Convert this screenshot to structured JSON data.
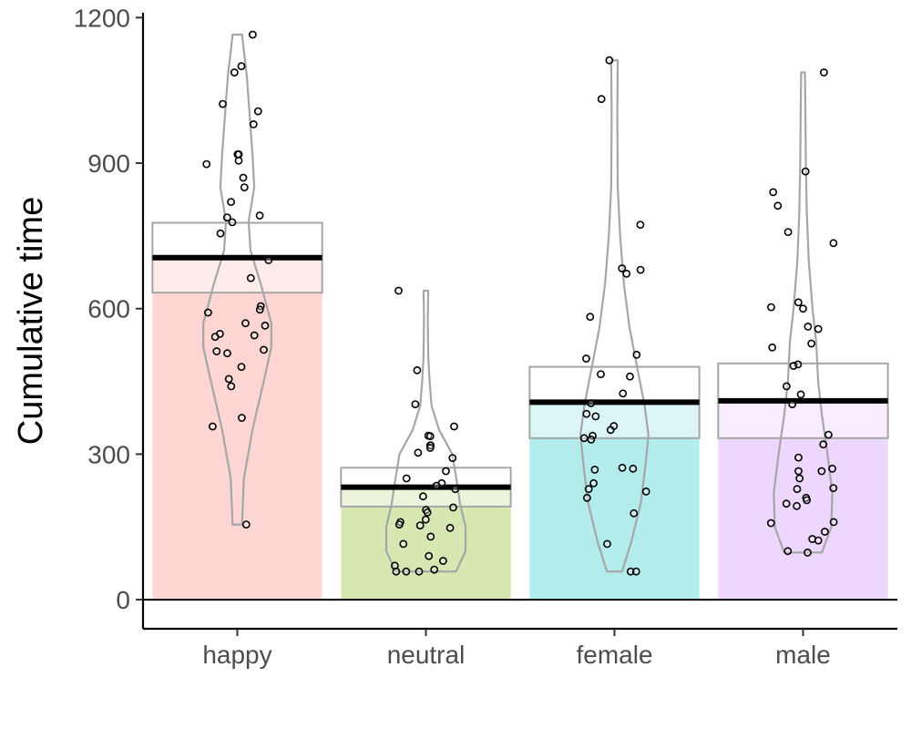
{
  "chart_data": {
    "type": "bar",
    "title": "",
    "xlabel": "",
    "ylabel": "Cumulative time",
    "ylim": [
      -60,
      1210
    ],
    "yticks": [
      0,
      300,
      600,
      900,
      1200
    ],
    "ytick_labels": [
      "0",
      "300",
      "600",
      "900",
      "1200"
    ],
    "grid": false,
    "legend": "none",
    "categories": [
      "happy",
      "neutral",
      "female",
      "male"
    ],
    "colors": [
      "#f8766d",
      "#7cae00",
      "#00bfc4",
      "#c77cff"
    ],
    "series": [
      {
        "values": [
          705,
          232,
          407,
          410
        ]
      }
    ],
    "ci_boxes": [
      {
        "low": 633,
        "high": 777
      },
      {
        "low": 192,
        "high": 272
      },
      {
        "low": 333,
        "high": 480
      },
      {
        "low": 333,
        "high": 487
      }
    ],
    "violins": [
      {
        "min": 155,
        "max": 1165,
        "profile": [
          [
            155,
            0.05
          ],
          [
            250,
            0.07
          ],
          [
            350,
            0.16
          ],
          [
            450,
            0.28
          ],
          [
            520,
            0.36
          ],
          [
            570,
            0.36
          ],
          [
            650,
            0.25
          ],
          [
            720,
            0.14
          ],
          [
            780,
            0.12
          ],
          [
            850,
            0.18
          ],
          [
            920,
            0.16
          ],
          [
            1000,
            0.13
          ],
          [
            1080,
            0.1
          ],
          [
            1165,
            0.05
          ]
        ]
      },
      {
        "min": 58,
        "max": 637,
        "profile": [
          [
            58,
            0.32
          ],
          [
            100,
            0.42
          ],
          [
            150,
            0.42
          ],
          [
            200,
            0.36
          ],
          [
            240,
            0.33
          ],
          [
            300,
            0.28
          ],
          [
            350,
            0.14
          ],
          [
            400,
            0.06
          ],
          [
            450,
            0.04
          ],
          [
            500,
            0.025
          ],
          [
            580,
            0.02
          ],
          [
            637,
            0.025
          ]
        ]
      },
      {
        "min": 58,
        "max": 1112,
        "profile": [
          [
            58,
            0.08
          ],
          [
            120,
            0.18
          ],
          [
            200,
            0.28
          ],
          [
            280,
            0.33
          ],
          [
            340,
            0.36
          ],
          [
            400,
            0.32
          ],
          [
            480,
            0.24
          ],
          [
            560,
            0.16
          ],
          [
            650,
            0.1
          ],
          [
            750,
            0.06
          ],
          [
            850,
            0.035
          ],
          [
            1000,
            0.03
          ],
          [
            1112,
            0.035
          ]
        ]
      },
      {
        "min": 97,
        "max": 1087,
        "profile": [
          [
            97,
            0.2
          ],
          [
            150,
            0.3
          ],
          [
            220,
            0.31
          ],
          [
            300,
            0.26
          ],
          [
            380,
            0.2
          ],
          [
            450,
            0.16
          ],
          [
            530,
            0.14
          ],
          [
            600,
            0.1
          ],
          [
            700,
            0.06
          ],
          [
            800,
            0.04
          ],
          [
            900,
            0.03
          ],
          [
            1000,
            0.025
          ],
          [
            1087,
            0.02
          ]
        ]
      }
    ],
    "points": [
      {
        "category": "happy",
        "y": [
          1165,
          1100,
          1087,
          1022,
          1007,
          980,
          918,
          918,
          905,
          898,
          870,
          850,
          820,
          792,
          788,
          778,
          755,
          700,
          663,
          605,
          598,
          592,
          570,
          565,
          548,
          545,
          542,
          515,
          512,
          508,
          480,
          455,
          440,
          375,
          357,
          155
        ]
      },
      {
        "category": "neutral",
        "y": [
          637,
          473,
          403,
          357,
          338,
          337,
          318,
          318,
          313,
          303,
          292,
          265,
          250,
          240,
          235,
          228,
          213,
          190,
          185,
          180,
          165,
          160,
          155,
          153,
          148,
          130,
          115,
          90,
          80,
          70,
          62,
          58,
          58,
          58
        ]
      },
      {
        "category": "female",
        "y": [
          1112,
          1032,
          773,
          683,
          680,
          672,
          583,
          505,
          497,
          465,
          460,
          425,
          405,
          383,
          378,
          358,
          350,
          338,
          333,
          330,
          272,
          270,
          268,
          240,
          228,
          223,
          210,
          178,
          115,
          58,
          58
        ]
      },
      {
        "category": "male",
        "y": [
          1087,
          883,
          840,
          812,
          758,
          735,
          613,
          603,
          600,
          563,
          558,
          528,
          520,
          485,
          482,
          440,
          423,
          403,
          340,
          320,
          293,
          270,
          265,
          265,
          250,
          230,
          228,
          210,
          205,
          198,
          193,
          160,
          158,
          140,
          125,
          122,
          100,
          97
        ]
      }
    ]
  }
}
